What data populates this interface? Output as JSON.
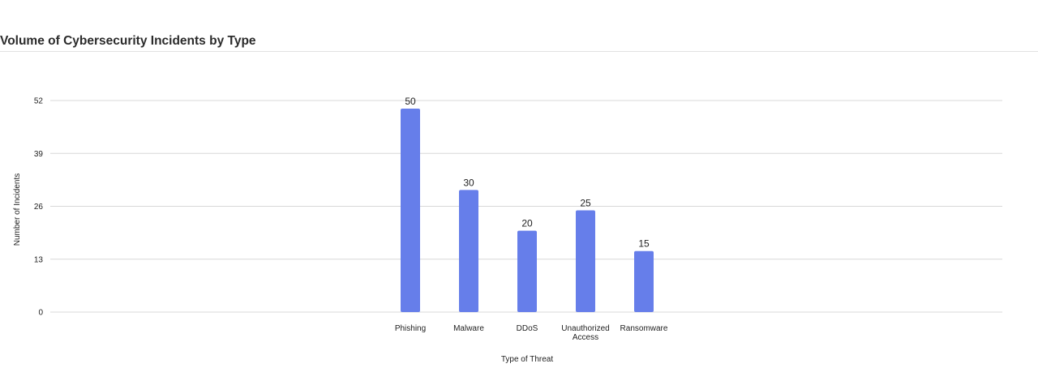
{
  "title": "Volume of Cybersecurity Incidents by Type",
  "chart_data": {
    "type": "bar",
    "title": "Volume of Cybersecurity Incidents by Type",
    "xlabel": "Type of Threat",
    "ylabel": "Number of Incidents",
    "categories": [
      [
        "Phishing"
      ],
      [
        "Malware"
      ],
      [
        "DDoS"
      ],
      [
        "Unauthorized",
        "Access"
      ],
      [
        "Ransomware"
      ]
    ],
    "values": [
      50,
      30,
      20,
      25,
      15
    ],
    "yticks": [
      0,
      13,
      26,
      39,
      52
    ],
    "ylim": [
      0,
      52
    ],
    "grid": true,
    "bar_color": "#667eea",
    "grid_color": "#d8d8d8"
  }
}
